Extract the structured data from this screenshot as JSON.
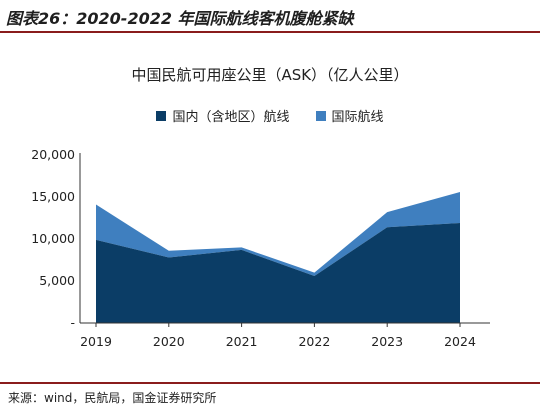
{
  "figure_title": "图表26：2020-2022 年国际航线客机腹舱紧缺",
  "source_note": "来源：wind，民航局，国金证券研究所",
  "chart_data": {
    "type": "area",
    "stacked": true,
    "title": "中国民航可用座公里（ASK）（亿人公里）",
    "categories": [
      "2019",
      "2020",
      "2021",
      "2022",
      "2023",
      "2024"
    ],
    "y_ticks": [
      "-",
      "5,000",
      "10,000",
      "15,000",
      "20,000"
    ],
    "ylim": [
      0,
      20000
    ],
    "grid": false,
    "legend_position": "top-center",
    "series": [
      {
        "name": "国内（含地区）航线",
        "color": "#0b3d66",
        "values": [
          9900,
          7800,
          8700,
          5600,
          11400,
          11900
        ]
      },
      {
        "name": "国际航线",
        "color": "#3f7fbf",
        "values": [
          4200,
          800,
          300,
          400,
          1800,
          3700
        ]
      }
    ]
  }
}
